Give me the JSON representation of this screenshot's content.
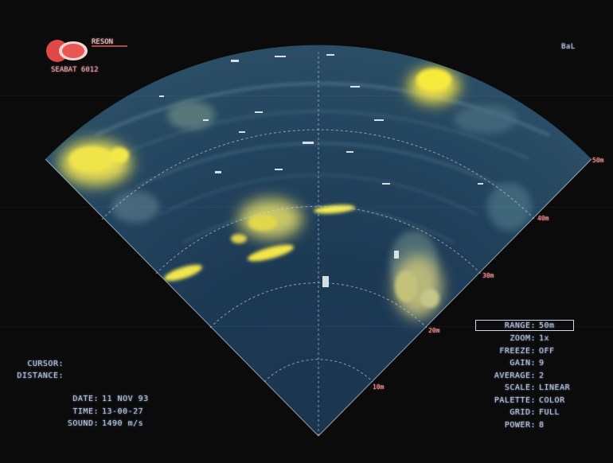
{
  "logo": {
    "brand": "RESON",
    "subtitle": "SEABAT 6012"
  },
  "corner_label": "BaL",
  "ring_labels": [
    "10m",
    "20m",
    "30m",
    "40m",
    "50m"
  ],
  "cursor_panel": {
    "cursor_label": "CURSOR:",
    "distance_label": "DISTANCE:"
  },
  "info_panel": {
    "date_label": "DATE:",
    "date_value": "11 NOV 93",
    "time_label": "TIME:",
    "time_value": "13-00-27",
    "sound_label": "SOUND:",
    "sound_value": "1490 m/s"
  },
  "settings": [
    {
      "label": "RANGE:",
      "value": "50m"
    },
    {
      "label": "ZOOM:",
      "value": "1x"
    },
    {
      "label": "FREEZE:",
      "value": "OFF"
    },
    {
      "label": "GAIN:",
      "value": "9"
    },
    {
      "label": "AVERAGE:",
      "value": "2"
    },
    {
      "label": "SCALE:",
      "value": "LINEAR"
    },
    {
      "label": "PALETTE:",
      "value": "COLOR"
    },
    {
      "label": "GRID:",
      "value": "FULL"
    },
    {
      "label": "POWER:",
      "value": "8"
    }
  ],
  "colors": {
    "background": "#0b0b0c",
    "sonar_water": "#1c3550",
    "echo_strong": "#f2e64a",
    "echo_mid": "#9fb48a",
    "grid": "#d8d8e0",
    "range_label": "#e8a8a8",
    "logo_red": "#e04848"
  },
  "icons": {
    "logo": "reson-logo-icon"
  }
}
